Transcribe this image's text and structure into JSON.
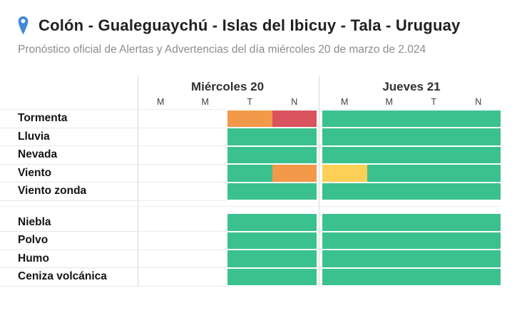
{
  "page": {
    "title": "Colón - Gualeguaychú - Islas del Ibicuy - Tala - Uruguay",
    "subtitle": "Pronóstico oficial de Alertas y Advertencias del día miércoles 20 de marzo de 2.024"
  },
  "colors": {
    "green": "#3BC18E",
    "yellow": "#FCD056",
    "orange": "#F2994A",
    "red": "#D9545F",
    "pin_blue": "#4189D6"
  },
  "table": {
    "days": [
      {
        "label": "Miércoles 20",
        "periods": [
          "M",
          "M",
          "T",
          "N"
        ]
      },
      {
        "label": "Jueves 21",
        "periods": [
          "M",
          "M",
          "T",
          "N"
        ]
      }
    ],
    "groups": [
      {
        "rows": [
          {
            "label": "Tormenta",
            "cells": [
              null,
              null,
              "orange",
              "red",
              "green",
              "green",
              "green",
              "green"
            ]
          },
          {
            "label": "Lluvia",
            "cells": [
              null,
              null,
              "green",
              "green",
              "green",
              "green",
              "green",
              "green"
            ]
          },
          {
            "label": "Nevada",
            "cells": [
              null,
              null,
              "green",
              "green",
              "green",
              "green",
              "green",
              "green"
            ]
          },
          {
            "label": "Viento",
            "cells": [
              null,
              null,
              "green",
              "orange",
              "yellow",
              "green",
              "green",
              "green"
            ]
          },
          {
            "label": "Viento zonda",
            "cells": [
              null,
              null,
              "green",
              "green",
              "green",
              "green",
              "green",
              "green"
            ]
          }
        ]
      },
      {
        "rows": [
          {
            "label": "Niebla",
            "cells": [
              null,
              null,
              "green",
              "green",
              "green",
              "green",
              "green",
              "green"
            ]
          },
          {
            "label": "Polvo",
            "cells": [
              null,
              null,
              "green",
              "green",
              "green",
              "green",
              "green",
              "green"
            ]
          },
          {
            "label": "Humo",
            "cells": [
              null,
              null,
              "green",
              "green",
              "green",
              "green",
              "green",
              "green"
            ]
          },
          {
            "label": "Ceniza volcánica",
            "cells": [
              null,
              null,
              "green",
              "green",
              "green",
              "green",
              "green",
              "green"
            ]
          }
        ]
      }
    ]
  }
}
